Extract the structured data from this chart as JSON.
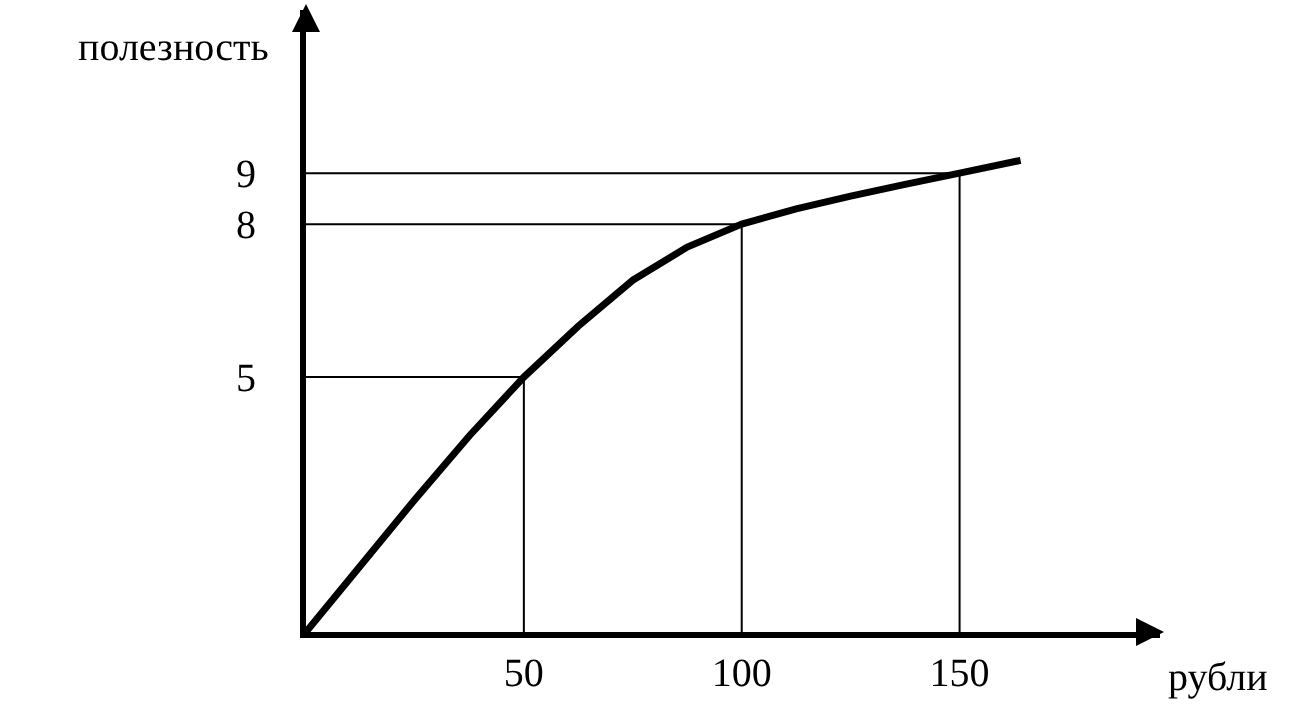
{
  "chart_data": {
    "type": "line",
    "xlabel": "рубли",
    "ylabel": "полезность",
    "xlim": [
      0,
      196
    ],
    "ylim": [
      0,
      12.2
    ],
    "xticks": [
      50,
      100,
      150
    ],
    "yticks": [
      5,
      8,
      9
    ],
    "grid": false,
    "marker": "none",
    "line_style": "solid",
    "series": [
      {
        "color": "#000000",
        "x": [
          0,
          12.5,
          25,
          37.5,
          50,
          62.5,
          75,
          87.5,
          100,
          112.5,
          125,
          137.5,
          150,
          164
        ],
        "values": [
          0,
          1.3,
          2.6,
          3.85,
          5,
          6,
          6.9,
          7.55,
          8,
          8.3,
          8.55,
          8.78,
          9,
          9.25
        ]
      },
      {
        "color": "#000000",
        "x": [
          0,
          50,
          50
        ],
        "values": [
          5,
          5,
          0
        ]
      },
      {
        "color": "#000000",
        "x": [
          0,
          100,
          100
        ],
        "values": [
          8,
          8,
          0
        ]
      },
      {
        "color": "#000000",
        "x": [
          0,
          150,
          150
        ],
        "values": [
          9,
          9,
          0
        ]
      }
    ]
  }
}
